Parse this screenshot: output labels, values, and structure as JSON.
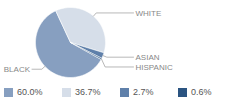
{
  "chart_data": {
    "type": "pie",
    "categories": [
      "BLACK",
      "WHITE",
      "ASIAN",
      "HISPANIC"
    ],
    "values": [
      60.0,
      36.7,
      2.7,
      0.6
    ],
    "value_labels": [
      "60.0%",
      "36.7%",
      "2.7%",
      "0.6%"
    ],
    "colors": [
      "#879fc0",
      "#d6dee9",
      "#5f80aa",
      "#2b5481"
    ]
  }
}
